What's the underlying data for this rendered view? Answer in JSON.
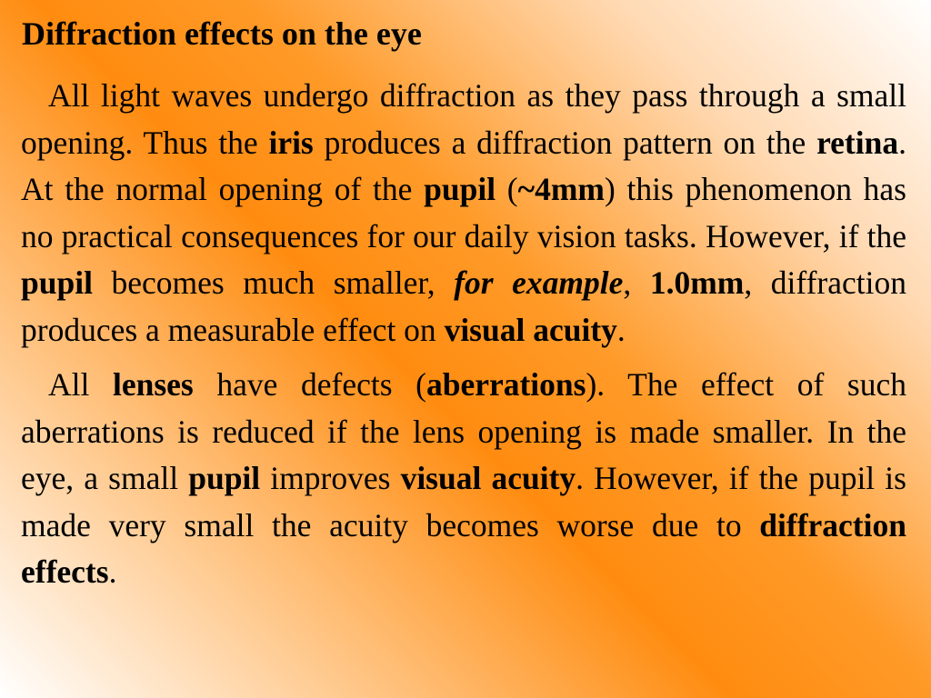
{
  "header": {
    "title": "Diffraction effects on the eye"
  },
  "paragraphs": [
    {
      "runs": [
        {
          "text": "All light waves undergo diffraction as they pass through a small opening. Thus the "
        },
        {
          "text": "iris",
          "bold": true
        },
        {
          "text": " produces a diffraction pattern on the "
        },
        {
          "text": "retina",
          "bold": true
        },
        {
          "text": ". At the normal opening of the "
        },
        {
          "text": "pupil",
          "bold": true
        },
        {
          "text": " ("
        },
        {
          "text": "~4mm",
          "bold": true
        },
        {
          "text": ") this phenomenon has no practical consequences for our daily vision tasks. However, if the "
        },
        {
          "text": "pupil",
          "bold": true
        },
        {
          "text": " becomes much smaller, "
        },
        {
          "text": "for example",
          "bold": true,
          "italic": true
        },
        {
          "text": ", "
        },
        {
          "text": "1.0mm",
          "bold": true
        },
        {
          "text": ", diffraction produces a measurable effect on "
        },
        {
          "text": "visual acuity",
          "bold": true
        },
        {
          "text": "."
        }
      ]
    },
    {
      "runs": [
        {
          "text": "All "
        },
        {
          "text": "lenses",
          "bold": true
        },
        {
          "text": " have defects ("
        },
        {
          "text": "aberrations",
          "bold": true
        },
        {
          "text": "). The effect of such aberrations is reduced if the lens opening is made smaller. In the eye, a small "
        },
        {
          "text": "pupil",
          "bold": true
        },
        {
          "text": " improves "
        },
        {
          "text": "visual acuity",
          "bold": true
        },
        {
          "text": ". However, if the pupil is made very small the acuity becomes worse due to "
        },
        {
          "text": "diffraction effects",
          "bold": true
        },
        {
          "text": "."
        }
      ]
    }
  ]
}
